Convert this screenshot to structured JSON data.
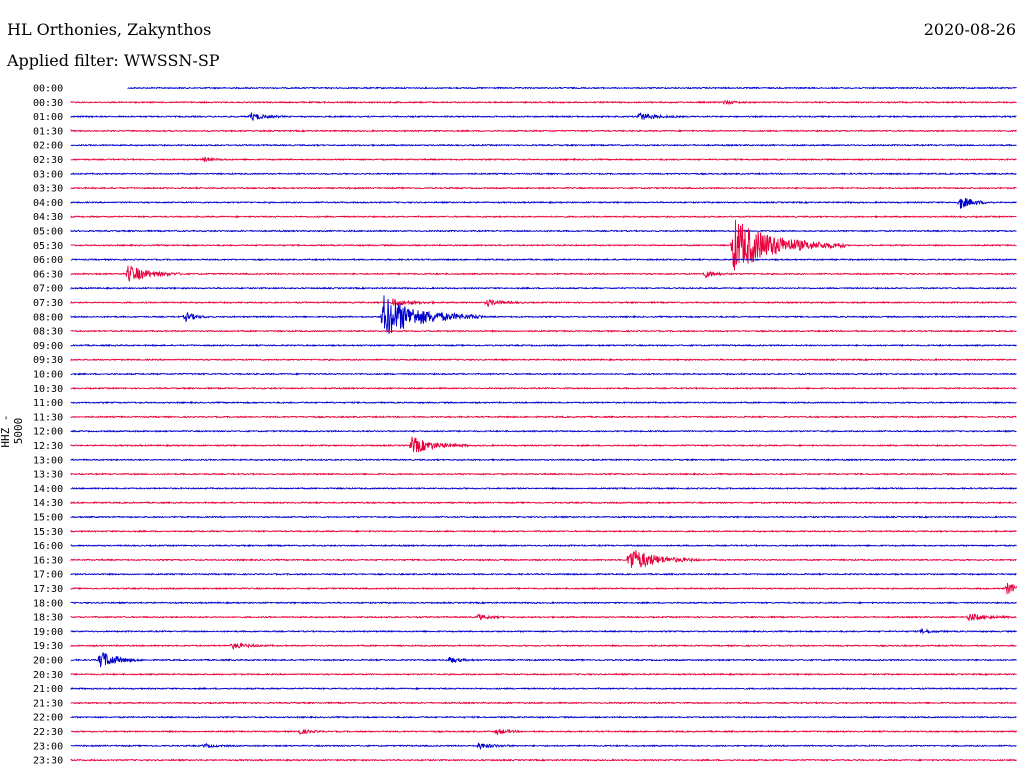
{
  "header": {
    "station": "HL Orthonies, Zakynthos",
    "date": "2020-08-26",
    "filter": "Applied filter: WWSSN-SP",
    "channel": "HHZ - 5000"
  },
  "colors": {
    "blue": "#0000cc",
    "red": "#e8003c"
  },
  "chart_data": {
    "type": "line",
    "title": "HL Orthonies, Zakynthos",
    "subtitle": "Applied filter: WWSSN-SP",
    "ylabel": "HHZ - 5000",
    "rows": [
      "00:00",
      "00:30",
      "01:00",
      "01:30",
      "02:00",
      "02:30",
      "03:00",
      "03:30",
      "04:00",
      "04:30",
      "05:00",
      "05:30",
      "06:00",
      "06:30",
      "07:00",
      "07:30",
      "08:00",
      "08:30",
      "09:00",
      "09:30",
      "10:00",
      "10:30",
      "11:00",
      "11:30",
      "12:00",
      "12:30",
      "13:00",
      "13:30",
      "14:00",
      "14:30",
      "15:00",
      "15:30",
      "16:00",
      "16:30",
      "17:00",
      "17:30",
      "18:00",
      "18:30",
      "19:00",
      "19:30",
      "20:00",
      "20:30",
      "21:00",
      "21:30",
      "22:00",
      "22:30",
      "23:00",
      "23:30"
    ],
    "series_colors": [
      "blue",
      "red"
    ],
    "events": [
      {
        "row": "00:30",
        "t": 0.69,
        "amp": 2,
        "dur": 0.01
      },
      {
        "row": "01:00",
        "t": 0.19,
        "amp": 4,
        "dur": 0.012
      },
      {
        "row": "01:00",
        "t": 0.6,
        "amp": 4,
        "dur": 0.015
      },
      {
        "row": "02:30",
        "t": 0.14,
        "amp": 2,
        "dur": 0.01
      },
      {
        "row": "04:00",
        "t": 0.94,
        "amp": 7,
        "dur": 0.012
      },
      {
        "row": "05:30",
        "t": 0.7,
        "amp": 28,
        "dur": 0.04
      },
      {
        "row": "06:30",
        "t": 0.06,
        "amp": 9,
        "dur": 0.02
      },
      {
        "row": "06:30",
        "t": 0.67,
        "amp": 4,
        "dur": 0.01
      },
      {
        "row": "07:30",
        "t": 0.34,
        "amp": 4,
        "dur": 0.015
      },
      {
        "row": "07:30",
        "t": 0.44,
        "amp": 3,
        "dur": 0.015
      },
      {
        "row": "08:00",
        "t": 0.12,
        "amp": 5,
        "dur": 0.01
      },
      {
        "row": "08:00",
        "t": 0.33,
        "amp": 22,
        "dur": 0.035
      },
      {
        "row": "12:30",
        "t": 0.36,
        "amp": 9,
        "dur": 0.02
      },
      {
        "row": "16:30",
        "t": 0.59,
        "amp": 13,
        "dur": 0.025
      },
      {
        "row": "17:30",
        "t": 0.99,
        "amp": 6,
        "dur": 0.01
      },
      {
        "row": "18:30",
        "t": 0.43,
        "amp": 3,
        "dur": 0.01
      },
      {
        "row": "18:30",
        "t": 0.95,
        "amp": 4,
        "dur": 0.015
      },
      {
        "row": "19:00",
        "t": 0.9,
        "amp": 2,
        "dur": 0.01
      },
      {
        "row": "19:30",
        "t": 0.17,
        "amp": 3,
        "dur": 0.015
      },
      {
        "row": "20:00",
        "t": 0.03,
        "amp": 10,
        "dur": 0.015
      },
      {
        "row": "20:00",
        "t": 0.4,
        "amp": 3,
        "dur": 0.01
      },
      {
        "row": "22:30",
        "t": 0.24,
        "amp": 3,
        "dur": 0.01
      },
      {
        "row": "22:30",
        "t": 0.45,
        "amp": 3,
        "dur": 0.01
      },
      {
        "row": "23:00",
        "t": 0.14,
        "amp": 2,
        "dur": 0.01
      },
      {
        "row": "23:00",
        "t": 0.43,
        "amp": 3,
        "dur": 0.015
      }
    ],
    "grid": false
  }
}
